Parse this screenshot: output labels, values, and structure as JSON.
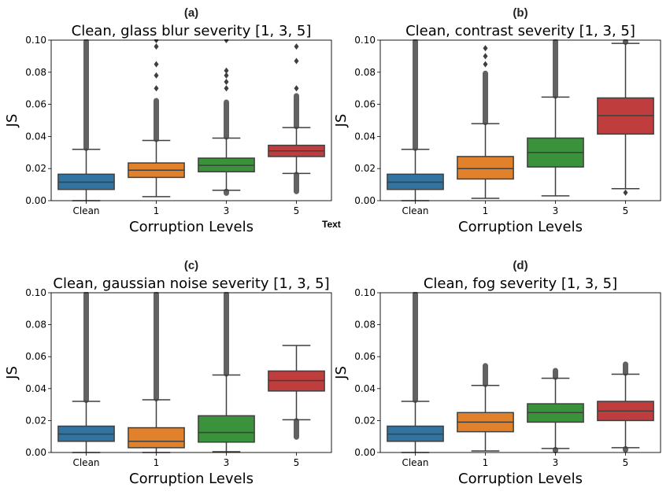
{
  "stray_text": "Text",
  "chart_data": [
    {
      "type": "box",
      "panel": "(a)",
      "title": "Clean, glass blur severity [1, 3, 5]",
      "xlabel": "Corruption Levels",
      "ylabel": "JS",
      "ylim": [
        0,
        0.1
      ],
      "yticks": [
        "0.00",
        "0.02",
        "0.04",
        "0.06",
        "0.08",
        "0.10"
      ],
      "categories": [
        "Clean",
        "1",
        "3",
        "5"
      ],
      "colors": [
        "#3274a1",
        "#e1812c",
        "#3a923a",
        "#c03d3e"
      ],
      "boxes": [
        {
          "whislo": 0.0,
          "q1": 0.007,
          "med": 0.0115,
          "q3": 0.0165,
          "whishi": 0.032,
          "fliers_hi": [
            0.032,
            0.1
          ],
          "fliers_lo": []
        },
        {
          "whislo": 0.0025,
          "q1": 0.0145,
          "med": 0.019,
          "q3": 0.0235,
          "whishi": 0.0375,
          "fliers_hi": [
            0.0375,
            0.063
          ],
          "fliers_lo": [],
          "sparse_hi": [
            0.07,
            0.078,
            0.085,
            0.096,
            0.1
          ]
        },
        {
          "whislo": 0.0065,
          "q1": 0.018,
          "med": 0.022,
          "q3": 0.0265,
          "whishi": 0.039,
          "fliers_hi": [
            0.039,
            0.062
          ],
          "fliers_lo": [
            0.004,
            0.0065
          ],
          "sparse_hi": [
            0.07,
            0.074,
            0.078,
            0.081,
            0.1
          ]
        },
        {
          "whislo": 0.017,
          "q1": 0.0275,
          "med": 0.031,
          "q3": 0.0345,
          "whishi": 0.0455,
          "fliers_hi": [
            0.0455,
            0.066
          ],
          "fliers_lo": [
            0.005,
            0.017
          ],
          "sparse_hi": [
            0.07,
            0.087,
            0.096
          ]
        }
      ]
    },
    {
      "type": "box",
      "panel": "(b)",
      "title": "Clean, contrast severity [1, 3, 5]",
      "xlabel": "Corruption Levels",
      "ylabel": "JS",
      "ylim": [
        0,
        0.1
      ],
      "yticks": [
        "0.00",
        "0.02",
        "0.04",
        "0.06",
        "0.08",
        "0.10"
      ],
      "categories": [
        "Clean",
        "1",
        "3",
        "5"
      ],
      "colors": [
        "#3274a1",
        "#e1812c",
        "#3a923a",
        "#c03d3e"
      ],
      "boxes": [
        {
          "whislo": 0.0,
          "q1": 0.007,
          "med": 0.0115,
          "q3": 0.0165,
          "whishi": 0.032,
          "fliers_hi": [
            0.032,
            0.1
          ],
          "fliers_lo": []
        },
        {
          "whislo": 0.0015,
          "q1": 0.0135,
          "med": 0.02,
          "q3": 0.0275,
          "whishi": 0.048,
          "fliers_hi": [
            0.048,
            0.08
          ],
          "fliers_lo": [],
          "sparse_hi": [
            0.085,
            0.09,
            0.095
          ]
        },
        {
          "whislo": 0.003,
          "q1": 0.021,
          "med": 0.03,
          "q3": 0.039,
          "whishi": 0.0645,
          "fliers_hi": [
            0.0645,
            0.1
          ],
          "fliers_lo": []
        },
        {
          "whislo": 0.0075,
          "q1": 0.0415,
          "med": 0.053,
          "q3": 0.064,
          "whishi": 0.098,
          "fliers_hi": [
            0.098,
            0.1
          ],
          "fliers_lo": [
            0.005
          ]
        }
      ]
    },
    {
      "type": "box",
      "panel": "(c)",
      "title": "Clean, gaussian noise severity [1, 3, 5]",
      "xlabel": "Corruption Levels",
      "ylabel": "JS",
      "ylim": [
        0,
        0.1
      ],
      "yticks": [
        "0.00",
        "0.02",
        "0.04",
        "0.06",
        "0.08",
        "0.10"
      ],
      "categories": [
        "Clean",
        "1",
        "3",
        "5"
      ],
      "colors": [
        "#3274a1",
        "#e1812c",
        "#3a923a",
        "#c03d3e"
      ],
      "boxes": [
        {
          "whislo": 0.0,
          "q1": 0.007,
          "med": 0.0115,
          "q3": 0.0165,
          "whishi": 0.032,
          "fliers_hi": [
            0.032,
            0.1
          ],
          "fliers_lo": []
        },
        {
          "whislo": 0.0,
          "q1": 0.003,
          "med": 0.007,
          "q3": 0.0155,
          "whishi": 0.033,
          "fliers_hi": [
            0.033,
            0.1
          ],
          "fliers_lo": []
        },
        {
          "whislo": 0.0005,
          "q1": 0.0065,
          "med": 0.0125,
          "q3": 0.023,
          "whishi": 0.0485,
          "fliers_hi": [
            0.0485,
            0.1
          ],
          "fliers_lo": []
        },
        {
          "whislo": 0.0205,
          "q1": 0.0385,
          "med": 0.045,
          "q3": 0.051,
          "whishi": 0.067,
          "fliers_hi": [],
          "fliers_lo": [
            0.009,
            0.0205
          ]
        }
      ]
    },
    {
      "type": "box",
      "panel": "(d)",
      "title": "Clean, fog severity [1, 3, 5]",
      "xlabel": "Corruption Levels",
      "ylabel": "JS",
      "ylim": [
        0,
        0.1
      ],
      "yticks": [
        "0.00",
        "0.02",
        "0.04",
        "0.06",
        "0.08",
        "0.10"
      ],
      "categories": [
        "Clean",
        "1",
        "3",
        "5"
      ],
      "colors": [
        "#3274a1",
        "#e1812c",
        "#3a923a",
        "#c03d3e"
      ],
      "boxes": [
        {
          "whislo": 0.0,
          "q1": 0.007,
          "med": 0.0115,
          "q3": 0.0165,
          "whishi": 0.032,
          "fliers_hi": [
            0.032,
            0.1
          ],
          "fliers_lo": []
        },
        {
          "whislo": 0.001,
          "q1": 0.013,
          "med": 0.019,
          "q3": 0.025,
          "whishi": 0.042,
          "fliers_hi": [
            0.042,
            0.055
          ],
          "fliers_lo": []
        },
        {
          "whislo": 0.0025,
          "q1": 0.019,
          "med": 0.025,
          "q3": 0.0305,
          "whishi": 0.0465,
          "fliers_hi": [
            0.0465,
            0.052
          ],
          "fliers_lo": [
            0.0005,
            0.0025
          ]
        },
        {
          "whislo": 0.003,
          "q1": 0.02,
          "med": 0.026,
          "q3": 0.032,
          "whishi": 0.049,
          "fliers_hi": [
            0.049,
            0.056
          ],
          "fliers_lo": [
            0.001,
            0.003
          ]
        }
      ]
    }
  ]
}
